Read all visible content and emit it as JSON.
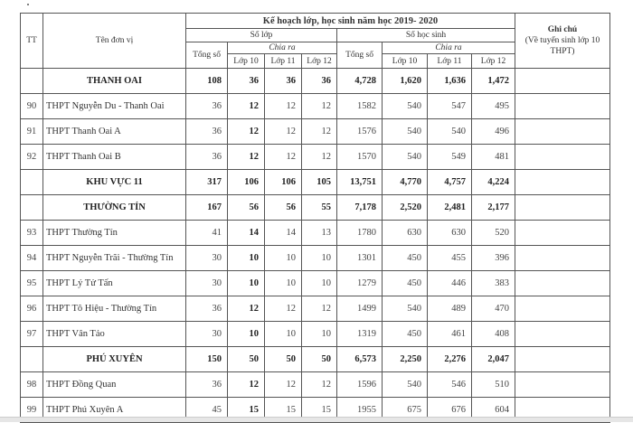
{
  "header": {
    "tt": "TT",
    "name": "Tên đơn vị",
    "plan_title": "Kế hoạch lớp, học sinh năm học 2019- 2020",
    "classes": "Số lớp",
    "students": "Số học sinh",
    "total": "Tổng số",
    "split": "Chia ra",
    "grade10": "Lớp 10",
    "grade11": "Lớp 11",
    "grade12": "Lớp 12",
    "note_title": "Ghi chú",
    "note_sub": "(Về tuyển sinh lớp 10 THPT)"
  },
  "rows": [
    {
      "tt": "",
      "name": "THANH OAI",
      "group": true,
      "c_total": "108",
      "c10": "36",
      "c11": "36",
      "c12": "36",
      "s_total": "4,728",
      "s10": "1,620",
      "s11": "1,636",
      "s12": "1,472",
      "note": ""
    },
    {
      "tt": "90",
      "name": "THPT Nguyễn Du - Thanh Oai",
      "group": false,
      "c_total": "36",
      "c10": "12",
      "c11": "12",
      "c12": "12",
      "s_total": "1582",
      "s10": "540",
      "s11": "547",
      "s12": "495",
      "note": ""
    },
    {
      "tt": "91",
      "name": "THPT Thanh Oai A",
      "group": false,
      "c_total": "36",
      "c10": "12",
      "c11": "12",
      "c12": "12",
      "s_total": "1576",
      "s10": "540",
      "s11": "540",
      "s12": "496",
      "note": ""
    },
    {
      "tt": "92",
      "name": "THPT Thanh Oai B",
      "group": false,
      "c_total": "36",
      "c10": "12",
      "c11": "12",
      "c12": "12",
      "s_total": "1570",
      "s10": "540",
      "s11": "549",
      "s12": "481",
      "note": ""
    },
    {
      "tt": "",
      "name": "KHU VỰC 11",
      "group": true,
      "c_total": "317",
      "c10": "106",
      "c11": "106",
      "c12": "105",
      "s_total": "13,751",
      "s10": "4,770",
      "s11": "4,757",
      "s12": "4,224",
      "note": ""
    },
    {
      "tt": "",
      "name": "THƯỜNG TÍN",
      "group": true,
      "c_total": "167",
      "c10": "56",
      "c11": "56",
      "c12": "55",
      "s_total": "7,178",
      "s10": "2,520",
      "s11": "2,481",
      "s12": "2,177",
      "note": ""
    },
    {
      "tt": "93",
      "name": "THPT Thường Tín",
      "group": false,
      "c_total": "41",
      "c10": "14",
      "c11": "14",
      "c12": "13",
      "s_total": "1780",
      "s10": "630",
      "s11": "630",
      "s12": "520",
      "note": ""
    },
    {
      "tt": "94",
      "name": "THPT Nguyễn Trãi - Thường Tín",
      "group": false,
      "c_total": "30",
      "c10": "10",
      "c11": "10",
      "c12": "10",
      "s_total": "1301",
      "s10": "450",
      "s11": "455",
      "s12": "396",
      "note": ""
    },
    {
      "tt": "95",
      "name": "THPT Lý Tử Tấn",
      "group": false,
      "c_total": "30",
      "c10": "10",
      "c11": "10",
      "c12": "10",
      "s_total": "1279",
      "s10": "450",
      "s11": "446",
      "s12": "383",
      "note": ""
    },
    {
      "tt": "96",
      "name": "THPT Tô Hiệu - Thường Tín",
      "group": false,
      "c_total": "36",
      "c10": "12",
      "c11": "12",
      "c12": "12",
      "s_total": "1499",
      "s10": "540",
      "s11": "489",
      "s12": "470",
      "note": ""
    },
    {
      "tt": "97",
      "name": "THPT Vân Tảo",
      "group": false,
      "c_total": "30",
      "c10": "10",
      "c11": "10",
      "c12": "10",
      "s_total": "1319",
      "s10": "450",
      "s11": "461",
      "s12": "408",
      "note": ""
    },
    {
      "tt": "",
      "name": "PHÚ XUYÊN",
      "group": true,
      "c_total": "150",
      "c10": "50",
      "c11": "50",
      "c12": "50",
      "s_total": "6,573",
      "s10": "2,250",
      "s11": "2,276",
      "s12": "2,047",
      "note": ""
    },
    {
      "tt": "98",
      "name": "THPT Đồng Quan",
      "group": false,
      "c_total": "36",
      "c10": "12",
      "c11": "12",
      "c12": "12",
      "s_total": "1596",
      "s10": "540",
      "s11": "546",
      "s12": "510",
      "note": ""
    },
    {
      "tt": "99",
      "name": "THPT Phú Xuyên A",
      "group": false,
      "c_total": "45",
      "c10": "15",
      "c11": "15",
      "c12": "15",
      "s_total": "1955",
      "s10": "675",
      "s11": "676",
      "s12": "604",
      "note": ""
    }
  ]
}
